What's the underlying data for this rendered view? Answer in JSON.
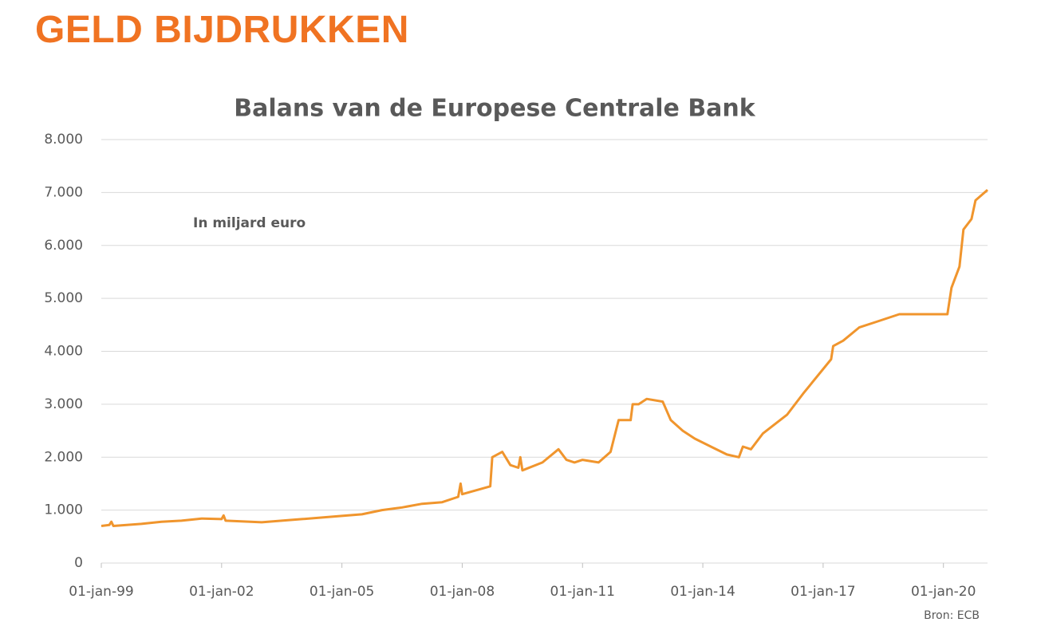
{
  "header": {
    "title": "GELD BIJDRUKKEN"
  },
  "chart_data": {
    "type": "line",
    "title": "Balans van de Europese Centrale Bank",
    "annotation": "In miljard euro",
    "source": "Bron: ECB",
    "color": "#f0952d",
    "grid": true,
    "x": [
      1999.0,
      1999.2,
      1999.25,
      1999.3,
      2000.0,
      2000.5,
      2001.0,
      2001.5,
      2002.0,
      2002.05,
      2002.1,
      2003.0,
      2003.5,
      2004.0,
      2005.0,
      2005.5,
      2006.0,
      2006.5,
      2007.0,
      2007.5,
      2007.9,
      2007.96,
      2008.0,
      2008.7,
      2008.75,
      2009.0,
      2009.2,
      2009.4,
      2009.45,
      2009.5,
      2010.0,
      2010.4,
      2010.6,
      2010.8,
      2011.0,
      2011.4,
      2011.7,
      2011.9,
      2012.2,
      2012.25,
      2012.4,
      2012.6,
      2013.0,
      2013.2,
      2013.5,
      2013.8,
      2014.2,
      2014.6,
      2014.9,
      2015.0,
      2015.2,
      2015.5,
      2016.1,
      2016.5,
      2017.2,
      2017.25,
      2017.5,
      2017.9,
      2018.3,
      2018.9,
      2019.5,
      2020.1,
      2020.2,
      2020.4,
      2020.5,
      2020.7,
      2020.8,
      2021.1
    ],
    "values": [
      700,
      720,
      780,
      700,
      740,
      780,
      800,
      840,
      830,
      900,
      800,
      770,
      800,
      830,
      890,
      920,
      1000,
      1050,
      1120,
      1150,
      1250,
      1500,
      1300,
      1450,
      2000,
      2100,
      1850,
      1800,
      2000,
      1750,
      1900,
      2150,
      1950,
      1900,
      1950,
      1900,
      2100,
      2700,
      2700,
      3000,
      3000,
      3100,
      3050,
      2700,
      2500,
      2350,
      2200,
      2050,
      2000,
      2200,
      2150,
      2450,
      2800,
      3200,
      3850,
      4100,
      4200,
      4450,
      4550,
      4700,
      4700,
      4700,
      5200,
      5600,
      6300,
      6500,
      6850,
      7050
    ],
    "xlim": [
      1999.0,
      2021.1
    ],
    "xticks": [
      {
        "value": 1999,
        "label": "01-jan-99"
      },
      {
        "value": 2002,
        "label": "01-jan-02"
      },
      {
        "value": 2005,
        "label": "01-jan-05"
      },
      {
        "value": 2008,
        "label": "01-jan-08"
      },
      {
        "value": 2011,
        "label": "01-jan-11"
      },
      {
        "value": 2014,
        "label": "01-jan-14"
      },
      {
        "value": 2017,
        "label": "01-jan-17"
      },
      {
        "value": 2020,
        "label": "01-jan-20"
      }
    ],
    "ylim": [
      0,
      8000
    ],
    "yticks": [
      0,
      {
        "value": 1000,
        "label": "1.000"
      },
      {
        "value": 2000,
        "label": "2.000"
      },
      {
        "value": 3000,
        "label": "3.000"
      },
      {
        "value": 4000,
        "label": "4.000"
      },
      {
        "value": 5000,
        "label": "5.000"
      },
      {
        "value": 6000,
        "label": "6.000"
      },
      {
        "value": 7000,
        "label": "7.000"
      },
      {
        "value": 8000,
        "label": "8.000"
      }
    ]
  }
}
